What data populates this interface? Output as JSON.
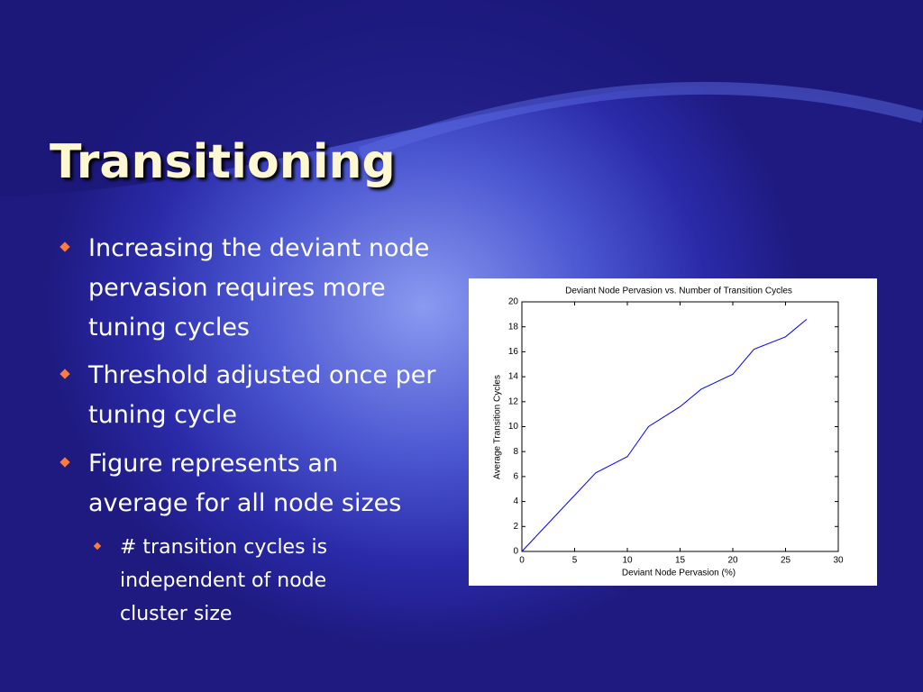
{
  "slide": {
    "title": "Transitioning",
    "bullets": [
      "Increasing the deviant node pervasion requires more tuning cycles",
      "Threshold adjusted once per tuning cycle",
      "Figure represents an average for all node sizes"
    ],
    "sub_bullets": [
      "# transition cycles is independent of node cluster size"
    ]
  },
  "chart_data": {
    "type": "line",
    "title": "Deviant Node Pervasion vs. Number of Transition Cycles",
    "x_label": "Deviant Node Pervasion (%)",
    "y_label": "Average Transition Cycles",
    "x": [
      0,
      7,
      10,
      12,
      15,
      17,
      20,
      22,
      25,
      27
    ],
    "series": [
      {
        "color": "#0000ff",
        "values": [
          0,
          6.3,
          7.6,
          10,
          11.6,
          13,
          14.2,
          16.2,
          17.2,
          18.6
        ]
      }
    ],
    "xlim": [
      0,
      30
    ],
    "xticks": [
      0,
      5,
      10,
      15,
      20,
      25,
      30
    ],
    "ylim": [
      0,
      20
    ],
    "yticks": [
      0,
      2,
      4,
      6,
      8,
      10,
      12,
      14,
      16,
      18,
      20
    ]
  }
}
